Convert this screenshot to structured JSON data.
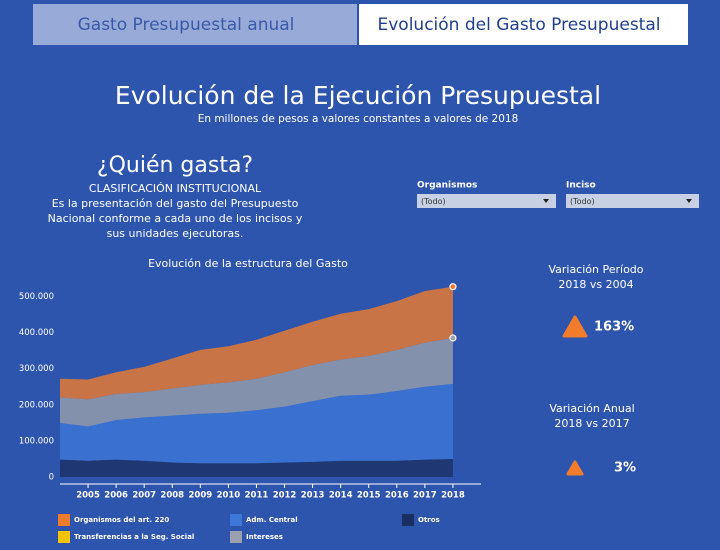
{
  "tabs": [
    "Gasto Presupuestal anual",
    "Evolución del Gasto Presupuestal"
  ],
  "header": {
    "title": "Evolución de la Ejecución Presupuestal",
    "subtitle": "En millones de pesos a valores constantes a valores de 2018"
  },
  "section": {
    "title": "¿Quién gasta?",
    "heading": "CLASIFICACIÓN INSTITUCIONAL",
    "description": [
      "Es la presentación del gasto del Presupuesto",
      "Nacional conforme a cada uno de los incisos y",
      "sus unidades ejecutoras."
    ]
  },
  "filters": [
    {
      "label": "Organismos",
      "value": "(Todo)"
    },
    {
      "label": "Inciso",
      "value": "(Todo)"
    }
  ],
  "kpis": [
    {
      "title": [
        "Variación Período",
        "2018 vs 2004"
      ],
      "value": "163%"
    },
    {
      "title": [
        "Variación Anual",
        "2018 vs 2017"
      ],
      "value": "3%"
    }
  ],
  "chart_data": {
    "type": "stacked_area",
    "title": "Evolución de la estructura del Gasto",
    "x": [
      2004,
      2005,
      2006,
      2007,
      2008,
      2009,
      2010,
      2011,
      2012,
      2013,
      2014,
      2015,
      2016,
      2017,
      2018
    ],
    "xlim": [
      2004,
      2019
    ],
    "xticks": [
      2005,
      2006,
      2007,
      2008,
      2009,
      2010,
      2011,
      2012,
      2013,
      2014,
      2015,
      2016,
      2017,
      2018
    ],
    "ylim": [
      0,
      540000
    ],
    "yticks": [
      0,
      {
        "value": 100000,
        "label": "100.000"
      },
      {
        "value": 200000,
        "label": "200.000"
      },
      {
        "value": 300000,
        "label": "300.000"
      },
      {
        "value": 400000,
        "label": "400.000"
      },
      {
        "value": 500000,
        "label": "500.000"
      }
    ],
    "series": [
      {
        "name": "Otros",
        "color": "#1b2f63",
        "values": [
          48000,
          45000,
          48000,
          45000,
          40000,
          38000,
          38000,
          38000,
          40000,
          42000,
          45000,
          45000,
          45000,
          48000,
          50000
        ]
      },
      {
        "name": "Transferencias a la Seg. Social",
        "color": "#f5c400",
        "values": [
          null,
          null,
          null,
          null,
          null,
          null,
          null,
          null,
          null,
          null,
          null,
          null,
          null,
          null,
          null
        ]
      },
      {
        "name": "Adm. Central",
        "color": "#3d78d8",
        "values": [
          102000,
          95000,
          110000,
          120000,
          130000,
          137000,
          140000,
          147000,
          155000,
          168000,
          180000,
          183000,
          193000,
          202000,
          208000
        ]
      },
      {
        "name": "Intereses",
        "color": "#9aa0ad",
        "values": [
          70000,
          75000,
          72000,
          70000,
          75000,
          80000,
          84000,
          87000,
          95000,
          100000,
          100000,
          107000,
          114000,
          122000,
          127000
        ]
      },
      {
        "name": "Organismos del art. 220",
        "color": "#f07c2c",
        "values": [
          52000,
          55000,
          60000,
          70000,
          83000,
          97000,
          100000,
          108000,
          115000,
          120000,
          127000,
          130000,
          135000,
          143000,
          142000
        ]
      }
    ]
  }
}
